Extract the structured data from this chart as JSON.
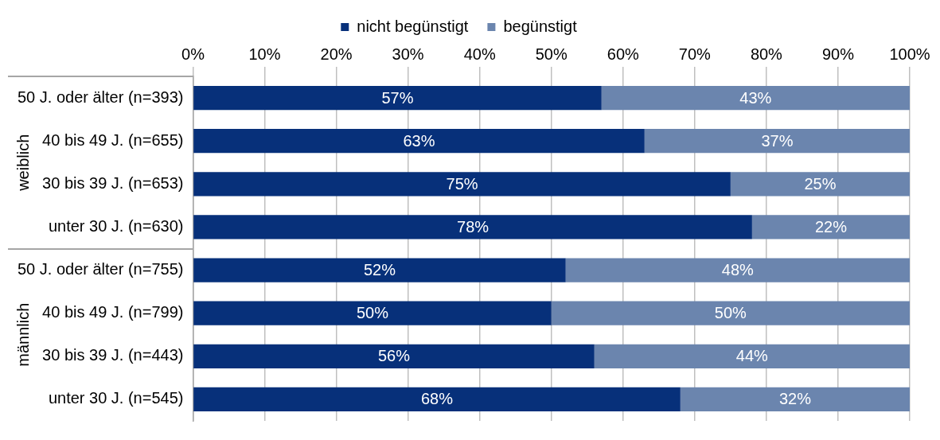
{
  "chart_data": {
    "type": "bar",
    "orientation": "horizontal",
    "stacked": true,
    "categories": [
      "50 J. oder älter (n=393)",
      "40 bis 49 J. (n=655)",
      "30 bis 39 J. (n=653)",
      "unter 30 J. (n=630)",
      "50 J. oder älter (n=755)",
      "40 bis 49 J. (n=799)",
      "30 bis 39 J. (n=443)",
      "unter 30 J. (n=545)"
    ],
    "series": [
      {
        "name": "nicht begünstigt",
        "color": "#07307a",
        "values": [
          57,
          63,
          75,
          78,
          52,
          50,
          56,
          68
        ],
        "value_labels": [
          "57%",
          "63%",
          "75%",
          "78%",
          "52%",
          "50%",
          "56%",
          "68%"
        ]
      },
      {
        "name": "begünstigt",
        "color": "#6b85ae",
        "values": [
          43,
          37,
          25,
          22,
          48,
          50,
          44,
          32
        ],
        "value_labels": [
          "43%",
          "37%",
          "25%",
          "22%",
          "48%",
          "50%",
          "44%",
          "32%"
        ]
      }
    ],
    "xlim": [
      0,
      100
    ],
    "xticks": [
      {
        "value": 0,
        "label": "0%"
      },
      {
        "value": 10,
        "label": "10%"
      },
      {
        "value": 20,
        "label": "20%"
      },
      {
        "value": 30,
        "label": "30%"
      },
      {
        "value": 40,
        "label": "40%"
      },
      {
        "value": 50,
        "label": "50%"
      },
      {
        "value": 60,
        "label": "60%"
      },
      {
        "value": 70,
        "label": "70%"
      },
      {
        "value": 80,
        "label": "80%"
      },
      {
        "value": 90,
        "label": "90%"
      },
      {
        "value": 100,
        "label": "100%"
      }
    ],
    "grid": "x",
    "legend": "top",
    "annotations": [
      "weiblich",
      "männlich"
    ]
  }
}
